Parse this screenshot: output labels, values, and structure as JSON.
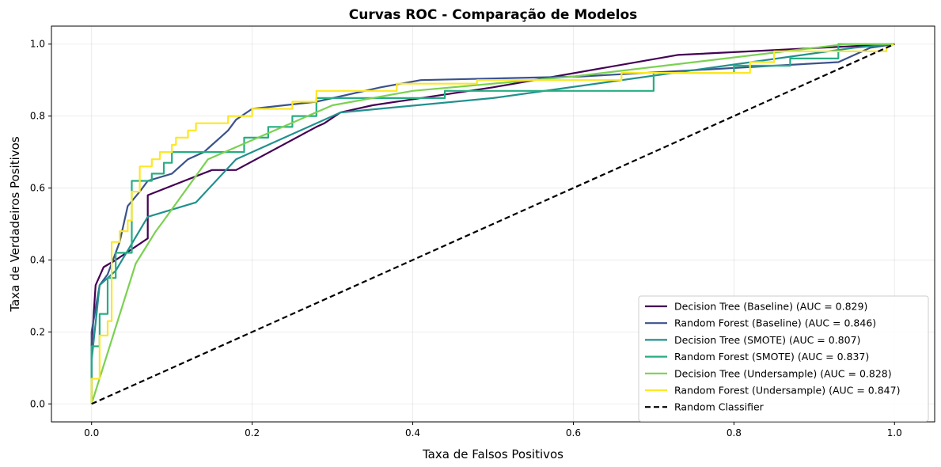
{
  "chart_data": {
    "type": "line",
    "title": "Curvas ROC - Comparação de Modelos",
    "xlabel": "Taxa de Falsos Positivos",
    "ylabel": "Taxa de Verdadeiros Positivos",
    "xlim": [
      -0.05,
      1.05
    ],
    "ylim": [
      -0.05,
      1.05
    ],
    "xticks": [
      0.0,
      0.2,
      0.4,
      0.6,
      0.8,
      1.0
    ],
    "xtick_labels": [
      "0.0",
      "0.2",
      "0.4",
      "0.6",
      "0.8",
      "1.0"
    ],
    "yticks": [
      0.0,
      0.2,
      0.4,
      0.6,
      0.8,
      1.0
    ],
    "ytick_labels": [
      "0.0",
      "0.2",
      "0.4",
      "0.6",
      "0.8",
      "1.0"
    ],
    "grid": true,
    "legend_position": "lower-right",
    "series": [
      {
        "name": "Decision Tree (Baseline) (AUC = 0.829)",
        "color": "#440154",
        "dashed": false,
        "x": [
          0,
          0,
          0.005,
          0.015,
          0.03,
          0.07,
          0.07,
          0.15,
          0.18,
          0.28,
          0.29,
          0.31,
          0.35,
          0.5,
          0.73,
          1.0
        ],
        "y": [
          0,
          0.16,
          0.33,
          0.38,
          0.4,
          0.46,
          0.58,
          0.65,
          0.65,
          0.77,
          0.78,
          0.81,
          0.83,
          0.88,
          0.97,
          1.0
        ]
      },
      {
        "name": "Random Forest (Baseline) (AUC = 0.846)",
        "color": "#3b528b",
        "dashed": false,
        "x": [
          0,
          0,
          0.01,
          0.02,
          0.02,
          0.035,
          0.035,
          0.045,
          0.045,
          0.06,
          0.06,
          0.07,
          0.07,
          0.1,
          0.1,
          0.12,
          0.12,
          0.14,
          0.14,
          0.15,
          0.15,
          0.16,
          0.16,
          0.17,
          0.17,
          0.18,
          0.18,
          0.2,
          0.2,
          0.28,
          0.28,
          0.36,
          0.36,
          0.41,
          0.41,
          0.61,
          0.61,
          0.93,
          0.93,
          0.97,
          0.97,
          1.0
        ],
        "y": [
          0,
          0.2,
          0.33,
          0.36,
          0.36,
          0.45,
          0.45,
          0.55,
          0.55,
          0.59,
          0.59,
          0.62,
          0.62,
          0.64,
          0.64,
          0.68,
          0.68,
          0.7,
          0.7,
          0.72,
          0.72,
          0.74,
          0.74,
          0.76,
          0.76,
          0.79,
          0.79,
          0.82,
          0.82,
          0.84,
          0.84,
          0.88,
          0.88,
          0.9,
          0.9,
          0.91,
          0.91,
          0.95,
          0.95,
          0.99,
          0.99,
          1.0
        ]
      },
      {
        "name": "Decision Tree (SMOTE) (AUC = 0.807)",
        "color": "#21908d",
        "dashed": false,
        "x": [
          0,
          0,
          0.01,
          0.03,
          0.07,
          0.13,
          0.18,
          0.31,
          0.5,
          0.95,
          1.0
        ],
        "y": [
          0,
          0.12,
          0.33,
          0.37,
          0.52,
          0.56,
          0.68,
          0.81,
          0.85,
          0.99,
          1.0
        ]
      },
      {
        "name": "Random Forest (SMOTE) (AUC = 0.837)",
        "color": "#27ad81",
        "dashed": false,
        "x": [
          0,
          0,
          0.01,
          0.01,
          0.02,
          0.02,
          0.03,
          0.03,
          0.05,
          0.05,
          0.07,
          0.07,
          0.075,
          0.075,
          0.09,
          0.09,
          0.1,
          0.1,
          0.19,
          0.19,
          0.22,
          0.22,
          0.25,
          0.25,
          0.28,
          0.28,
          0.44,
          0.44,
          0.7,
          0.7,
          0.8,
          0.8,
          0.87,
          0.87,
          0.93,
          0.93,
          1.0
        ],
        "y": [
          0,
          0.16,
          0.16,
          0.25,
          0.25,
          0.35,
          0.35,
          0.42,
          0.42,
          0.62,
          0.62,
          0.62,
          0.62,
          0.64,
          0.64,
          0.67,
          0.67,
          0.7,
          0.7,
          0.74,
          0.74,
          0.77,
          0.77,
          0.8,
          0.8,
          0.85,
          0.85,
          0.87,
          0.87,
          0.92,
          0.92,
          0.94,
          0.94,
          0.96,
          0.96,
          1.0,
          1.0
        ]
      },
      {
        "name": "Decision Tree (Undersample) (AUC = 0.828)",
        "color": "#7ad151",
        "dashed": false,
        "x": [
          0,
          0.055,
          0.08,
          0.09,
          0.145,
          0.3,
          0.4,
          0.6,
          0.94,
          1.0
        ],
        "y": [
          0,
          0.39,
          0.48,
          0.51,
          0.68,
          0.83,
          0.87,
          0.91,
          1.0,
          1.0
        ]
      },
      {
        "name": "Random Forest (Undersample) (AUC = 0.847)",
        "color": "#fde725",
        "dashed": false,
        "x": [
          0,
          0,
          0.01,
          0.01,
          0.02,
          0.02,
          0.025,
          0.025,
          0.035,
          0.035,
          0.045,
          0.045,
          0.05,
          0.05,
          0.06,
          0.06,
          0.075,
          0.075,
          0.085,
          0.085,
          0.1,
          0.1,
          0.105,
          0.105,
          0.12,
          0.12,
          0.13,
          0.13,
          0.17,
          0.17,
          0.2,
          0.2,
          0.25,
          0.25,
          0.28,
          0.28,
          0.38,
          0.38,
          0.48,
          0.48,
          0.66,
          0.66,
          0.82,
          0.82,
          0.85,
          0.85,
          0.99,
          0.99,
          1.0
        ],
        "y": [
          0,
          0.07,
          0.07,
          0.19,
          0.19,
          0.23,
          0.23,
          0.45,
          0.45,
          0.48,
          0.48,
          0.51,
          0.51,
          0.59,
          0.59,
          0.66,
          0.66,
          0.68,
          0.68,
          0.7,
          0.7,
          0.72,
          0.72,
          0.74,
          0.74,
          0.76,
          0.76,
          0.78,
          0.78,
          0.8,
          0.8,
          0.82,
          0.82,
          0.84,
          0.84,
          0.87,
          0.87,
          0.89,
          0.89,
          0.9,
          0.9,
          0.92,
          0.92,
          0.95,
          0.95,
          0.98,
          0.98,
          0.99,
          1.0
        ]
      },
      {
        "name": "Random Classifier",
        "color": "#000000",
        "dashed": true,
        "x": [
          0,
          1
        ],
        "y": [
          0,
          1
        ]
      }
    ]
  }
}
